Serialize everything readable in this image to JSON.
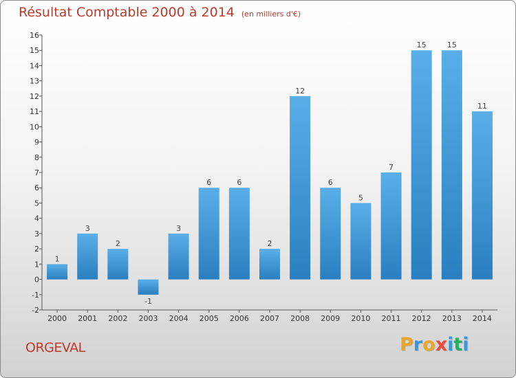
{
  "title": "Résultat Comptable 2000 à 2014",
  "subtitle": "(en milliers d'€)",
  "city": "ORGEVAL",
  "logo": {
    "letters": [
      "P",
      "r",
      "o",
      "x",
      "i",
      "t",
      "i"
    ],
    "colors": [
      "#e8a72c",
      "#3a9ad9",
      "#e8a72c",
      "#e74c3c",
      "#3a9ad9",
      "#27ae60",
      "#3a9ad9"
    ]
  },
  "colors": {
    "bar_top": "#5aaee8",
    "bar_bottom": "#2a7fc0",
    "title": "#c0392b",
    "axis": "#555555"
  },
  "chart_data": {
    "type": "bar",
    "categories": [
      "2000",
      "2001",
      "2002",
      "2003",
      "2004",
      "2005",
      "2006",
      "2007",
      "2008",
      "2009",
      "2010",
      "2011",
      "2012",
      "2013",
      "2014"
    ],
    "values": [
      1,
      3,
      2,
      -1,
      3,
      6,
      6,
      2,
      12,
      6,
      5,
      7,
      15,
      15,
      11
    ],
    "ylim": [
      -2,
      16
    ],
    "yticks": [
      "-2",
      "-1",
      "0",
      "1",
      "2",
      "3",
      "4",
      "5",
      "6",
      "7",
      "8",
      "9",
      "10",
      "11",
      "12",
      "13",
      "14",
      "15",
      "16"
    ],
    "grid": false
  }
}
